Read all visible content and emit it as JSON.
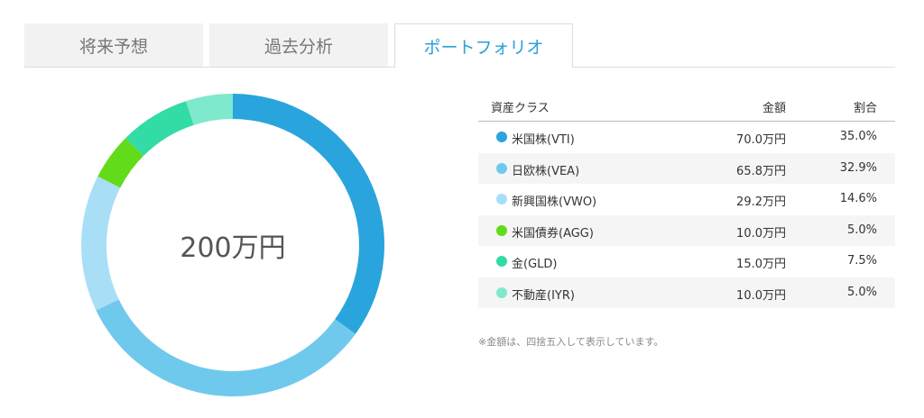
{
  "tabs": [
    {
      "label": "将来予想",
      "active": false
    },
    {
      "label": "過去分析",
      "active": false
    },
    {
      "label": "ポートフォリオ",
      "active": true
    }
  ],
  "colors": {
    "accent": "#2a9fd8",
    "tab_inactive_bg": "#f2f2f2",
    "row_alt_bg": "#f5f5f5"
  },
  "center_total": "200万円",
  "table": {
    "headers": {
      "name": "資産クラス",
      "amount": "金額",
      "ratio": "割合"
    },
    "rows": [
      {
        "name": "米国株(VTI)",
        "amount": "70.0万円",
        "ratio": "35.0%",
        "color": "#29a4dc"
      },
      {
        "name": "日欧株(VEA)",
        "amount": "65.8万円",
        "ratio": "32.9%",
        "color": "#6fc9ec"
      },
      {
        "name": "新興国株(VWO)",
        "amount": "29.2万円",
        "ratio": "14.6%",
        "color": "#a9def7"
      },
      {
        "name": "米国債券(AGG)",
        "amount": "10.0万円",
        "ratio": "5.0%",
        "color": "#62db1a"
      },
      {
        "name": "金(GLD)",
        "amount": "15.0万円",
        "ratio": "7.5%",
        "color": "#33dba7"
      },
      {
        "name": "不動産(IYR)",
        "amount": "10.0万円",
        "ratio": "5.0%",
        "color": "#7ee9cc"
      }
    ]
  },
  "note": "※金額は、四捨五入して表示しています。",
  "chart_data": {
    "type": "pie",
    "categories": [
      "米国株(VTI)",
      "日欧株(VEA)",
      "新興国株(VWO)",
      "米国債券(AGG)",
      "金(GLD)",
      "不動産(IYR)"
    ],
    "values": [
      35.0,
      32.9,
      14.6,
      5.0,
      7.5,
      5.0
    ],
    "colors": [
      "#29a4dc",
      "#6fc9ec",
      "#a9def7",
      "#62db1a",
      "#33dba7",
      "#7ee9cc"
    ],
    "title": "",
    "center_label": "200万円"
  }
}
